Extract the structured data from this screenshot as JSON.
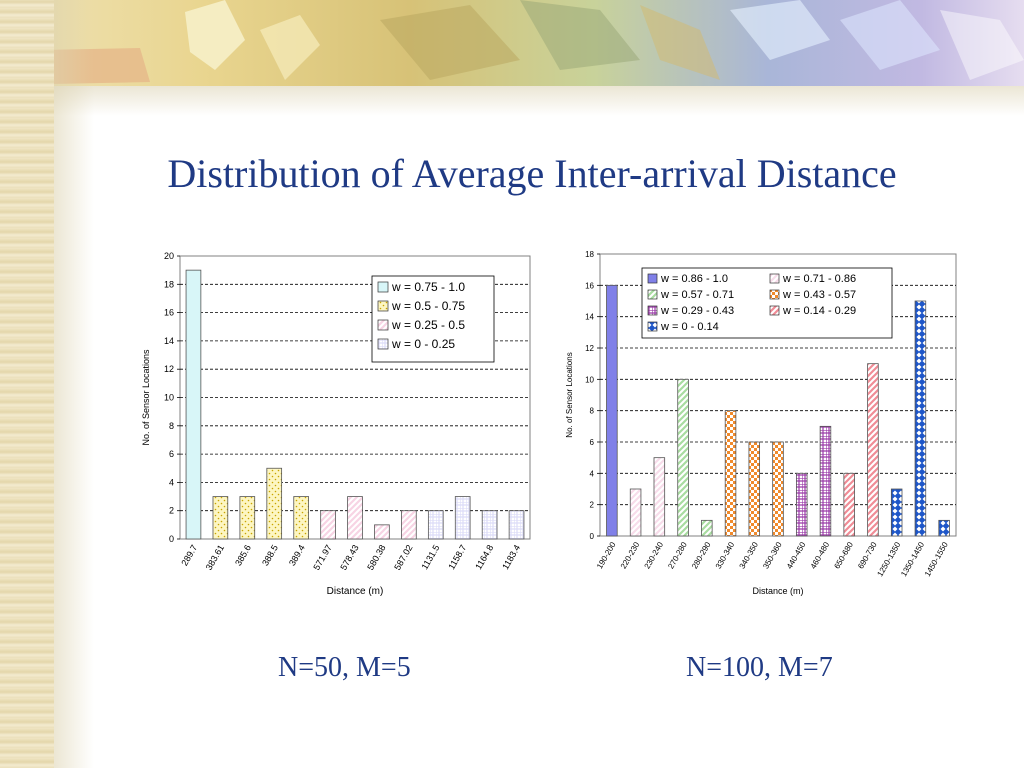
{
  "slide": {
    "title": "Distribution of Average Inter-arrival Distance",
    "left_caption": "N=50, M=5",
    "right_caption": "N=100, M=7"
  },
  "colors": {
    "title_text": "#1f3a84",
    "grid": "#000000",
    "plot_bg": "#ffffff"
  },
  "chart_data": [
    {
      "type": "bar",
      "xlabel": "Distance (m)",
      "ylabel": "No. of Sensor Locations",
      "ylim": [
        0,
        20
      ],
      "yticks": [
        0,
        2,
        4,
        6,
        8,
        10,
        12,
        14,
        16,
        18,
        20
      ],
      "grid": true,
      "legend_position": "top-right",
      "categories": [
        "289.7",
        "383.61",
        "385.6",
        "388.5",
        "389.4",
        "571.97",
        "578.43",
        "580.38",
        "587.02",
        "1131.5",
        "1158.7",
        "1164.8",
        "1183.4"
      ],
      "values": [
        19,
        3,
        3,
        5,
        3,
        2,
        3,
        1,
        2,
        2,
        3,
        2,
        2
      ],
      "bar_series": [
        0,
        1,
        1,
        1,
        1,
        2,
        2,
        2,
        2,
        3,
        3,
        3,
        3
      ],
      "series": [
        {
          "name": "w = 0.75 - 1.0",
          "color": "#d8f6f8",
          "pattern": "solid"
        },
        {
          "name": "w = 0.5 - 0.75",
          "color": "#fdf6c2",
          "pattern": "dots"
        },
        {
          "name": "w = 0.25 - 0.5",
          "color": "#f7d4e4",
          "pattern": "diag"
        },
        {
          "name": "w = 0 - 0.25",
          "color": "#dcdcf8",
          "pattern": "grid"
        }
      ]
    },
    {
      "type": "bar",
      "xlabel": "Distance (m)",
      "ylabel": "No. of Sensor Locations",
      "ylim": [
        0,
        18
      ],
      "yticks": [
        0,
        2,
        4,
        6,
        8,
        10,
        12,
        14,
        16,
        18
      ],
      "grid": true,
      "legend_position": "top",
      "categories": [
        "190-200",
        "220-230",
        "230-240",
        "270-280",
        "280-290",
        "330-340",
        "340-350",
        "350-360",
        "440-450",
        "460-480",
        "650-680",
        "690-730",
        "1250-1350",
        "1350-1450",
        "1450-1550"
      ],
      "values": [
        16,
        3,
        5,
        10,
        1,
        8,
        6,
        6,
        4,
        7,
        4,
        11,
        3,
        15,
        1
      ],
      "bar_series": [
        0,
        1,
        1,
        2,
        2,
        3,
        3,
        3,
        4,
        4,
        5,
        5,
        6,
        6,
        6
      ],
      "series": [
        {
          "name": "w = 0.86 - 1.0",
          "color": "#8080e8",
          "pattern": "solid"
        },
        {
          "name": "w = 0.71 - 0.86",
          "color": "#f7dcea",
          "pattern": "diag"
        },
        {
          "name": "w = 0.57 - 0.71",
          "color": "#a8dca0",
          "pattern": "diag"
        },
        {
          "name": "w = 0.43 - 0.57",
          "color": "#f08a2c",
          "pattern": "check"
        },
        {
          "name": "w = 0.29 - 0.43",
          "color": "#9a3aa8",
          "pattern": "grid"
        },
        {
          "name": "w = 0.14 - 0.29",
          "color": "#f08c96",
          "pattern": "diag"
        },
        {
          "name": "w = 0 - 0.14",
          "color": "#1e56c8",
          "pattern": "diamond"
        }
      ]
    }
  ]
}
